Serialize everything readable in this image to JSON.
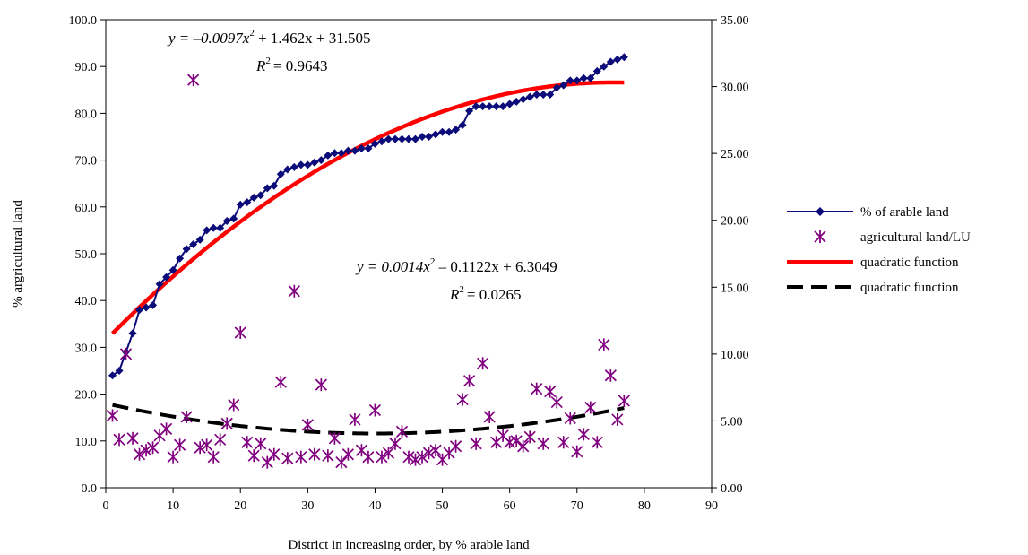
{
  "chart_data": {
    "type": "scatter",
    "xlabel": "District in increasing order, by % arable land",
    "ylabel": "% argricultural land",
    "xlim": [
      0,
      90
    ],
    "ylim_left": [
      0,
      100
    ],
    "ylim_right": [
      0,
      35
    ],
    "x_ticks": [
      "0",
      "10",
      "20",
      "30",
      "40",
      "50",
      "60",
      "70",
      "80",
      "90"
    ],
    "y_ticks_left": [
      "0.0",
      "10.0",
      "20.0",
      "30.0",
      "40.0",
      "50.0",
      "60.0",
      "70.0",
      "80.0",
      "90.0",
      "100.0"
    ],
    "y_ticks_right": [
      "0.00",
      "5.00",
      "10.00",
      "15.00",
      "20.00",
      "25.00",
      "30.00",
      "35.00"
    ],
    "grid": false,
    "legend_position": "right",
    "equations": [
      {
        "eq": "y = −0.0097x² + 1.462x + 31.505",
        "eq_main": "y = –0.0097x",
        "eq_rest": " + 1.462x + 31.505",
        "r2": "R² = 0.9643",
        "r2_value": "= 0.9643"
      },
      {
        "eq": "y = 0.0014x² – 0.1122x + 6.3049",
        "eq_main": "y = 0.0014x",
        "eq_rest": " –  0.1122x + 6.3049",
        "r2": "R² = 0.0265",
        "r2_value": "= 0.0265"
      }
    ],
    "series": [
      {
        "name": "% of arable land",
        "axis": "left",
        "marker": "diamond",
        "color": "#0b0b7a",
        "x": [
          1,
          2,
          3,
          4,
          5,
          6,
          7,
          8,
          9,
          10,
          11,
          12,
          13,
          14,
          15,
          16,
          17,
          18,
          19,
          20,
          21,
          22,
          23,
          24,
          25,
          26,
          27,
          28,
          29,
          30,
          31,
          32,
          33,
          34,
          35,
          36,
          37,
          38,
          39,
          40,
          41,
          42,
          43,
          44,
          45,
          46,
          47,
          48,
          49,
          50,
          51,
          52,
          53,
          54,
          55,
          56,
          57,
          58,
          59,
          60,
          61,
          62,
          63,
          64,
          65,
          66,
          67,
          68,
          69,
          70,
          71,
          72,
          73,
          74,
          75,
          76,
          77
        ],
        "y": [
          24.0,
          25.0,
          29.0,
          33.0,
          38.0,
          38.5,
          39.0,
          43.5,
          45.0,
          46.5,
          49.0,
          51.0,
          52.0,
          53.0,
          55.0,
          55.5,
          55.5,
          57.0,
          57.5,
          60.5,
          61.0,
          62.0,
          62.5,
          64.0,
          64.5,
          67.0,
          68.0,
          68.5,
          69.0,
          69.0,
          69.5,
          70.0,
          71.0,
          71.5,
          71.5,
          72.0,
          72.0,
          72.5,
          72.5,
          73.5,
          74.0,
          74.5,
          74.5,
          74.5,
          74.5,
          74.5,
          75.0,
          75.0,
          75.5,
          76.0,
          76.0,
          76.5,
          77.5,
          80.5,
          81.5,
          81.5,
          81.5,
          81.5,
          81.5,
          82.0,
          82.5,
          83.0,
          83.5,
          84.0,
          84.0,
          84.0,
          85.5,
          86.0,
          87.0,
          87.0,
          87.5,
          87.5,
          89.0,
          90.0,
          91.0,
          91.5,
          92.0
        ]
      },
      {
        "name": "agricultural land/LU",
        "axis": "right",
        "marker": "asterisk",
        "color": "#800080",
        "x": [
          1,
          2,
          3,
          4,
          5,
          6,
          7,
          8,
          9,
          10,
          11,
          12,
          13,
          14,
          15,
          16,
          17,
          18,
          19,
          20,
          21,
          22,
          23,
          24,
          25,
          26,
          27,
          28,
          29,
          30,
          31,
          32,
          33,
          34,
          35,
          36,
          37,
          38,
          39,
          40,
          41,
          42,
          43,
          44,
          45,
          46,
          47,
          48,
          49,
          50,
          51,
          52,
          53,
          54,
          55,
          56,
          57,
          58,
          59,
          60,
          61,
          62,
          63,
          64,
          65,
          66,
          67,
          68,
          69,
          70,
          71,
          72,
          73,
          74,
          75,
          76,
          77
        ],
        "y": [
          5.4,
          3.6,
          10.0,
          3.7,
          2.5,
          2.8,
          3.0,
          3.9,
          4.4,
          2.3,
          3.2,
          5.3,
          30.5,
          3.0,
          3.2,
          2.3,
          3.6,
          4.8,
          6.2,
          11.6,
          3.4,
          2.4,
          3.3,
          1.9,
          2.5,
          7.9,
          2.2,
          14.7,
          2.3,
          4.7,
          2.5,
          7.7,
          2.4,
          3.7,
          1.9,
          2.5,
          5.1,
          2.8,
          2.3,
          5.8,
          2.3,
          2.6,
          3.3,
          4.2,
          2.3,
          2.1,
          2.3,
          2.6,
          2.8,
          2.1,
          2.6,
          3.1,
          6.6,
          8.0,
          3.3,
          9.3,
          5.3,
          3.4,
          3.9,
          3.4,
          3.5,
          3.1,
          3.8,
          7.4,
          3.3,
          7.2,
          6.4,
          3.4,
          5.2,
          2.7,
          4.0,
          6.0,
          3.4,
          10.7,
          8.4,
          5.1,
          6.5
        ],
        "y_tail": [
          4.8
        ]
      }
    ],
    "trendlines": [
      {
        "name": "quadratic function",
        "axis": "left",
        "color": "#ff0000",
        "style": "solid",
        "coeffs": [
          -0.0097,
          1.462,
          31.505
        ],
        "x_range": [
          1,
          77
        ]
      },
      {
        "name": "quadratic function",
        "axis": "right",
        "color": "#000000",
        "style": "dashed",
        "coeffs": [
          0.0014,
          -0.1122,
          6.3049
        ],
        "x_range": [
          1,
          77
        ]
      }
    ]
  }
}
